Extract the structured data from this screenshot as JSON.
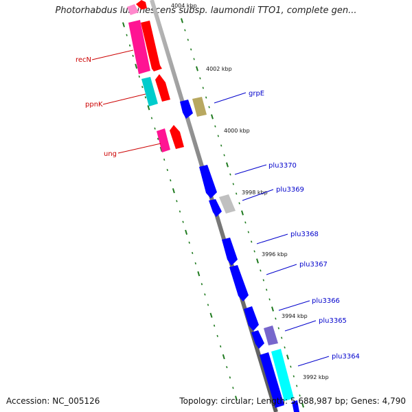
{
  "title": "Photorhabdus luminescens subsp. laumondii TTO1, complete gen...",
  "accession": "Accession: NC_005126",
  "summary": "Topology: circular; Length: 5,688,987 bp; Genes: 4,790",
  "colors": {
    "backbone": "#8a8a8a",
    "tick": "#1e7a1e",
    "left_label": "#cc0000",
    "right_label": "#0000cc"
  },
  "scale_ticks": [
    "4004 kbp",
    "4002 kbp",
    "4000 kbp",
    "3998 kbp",
    "3996 kbp",
    "3994 kbp",
    "3992 kbp"
  ],
  "left_genes": [
    {
      "label": "recN",
      "color": "#ff0000"
    },
    {
      "label": "ppnK",
      "color": "#ff0000"
    },
    {
      "label": "ung",
      "color": "#ff0000"
    }
  ],
  "right_genes": [
    {
      "label": "grpE",
      "color": "#0000ff"
    },
    {
      "label": "plu3370",
      "color": "#0000ff"
    },
    {
      "label": "plu3369",
      "color": "#0000ff"
    },
    {
      "label": "plu3368",
      "color": "#0000ff"
    },
    {
      "label": "plu3367",
      "color": "#0000ff"
    },
    {
      "label": "plu3366",
      "color": "#0000ff"
    },
    {
      "label": "plu3365",
      "color": "#0000ff"
    },
    {
      "label": "plu3364",
      "color": "#0000ff"
    }
  ],
  "feature_colors": {
    "gene_forward": "#ff0000",
    "gene_reverse": "#0000ff",
    "cds_magenta": "#ff1493",
    "cds_cyan": "#00cccc",
    "cds_olive": "#b8a860",
    "cds_grey": "#c0c0c0",
    "cds_purple": "#7766cc",
    "cds_aqua": "#00ffff"
  }
}
